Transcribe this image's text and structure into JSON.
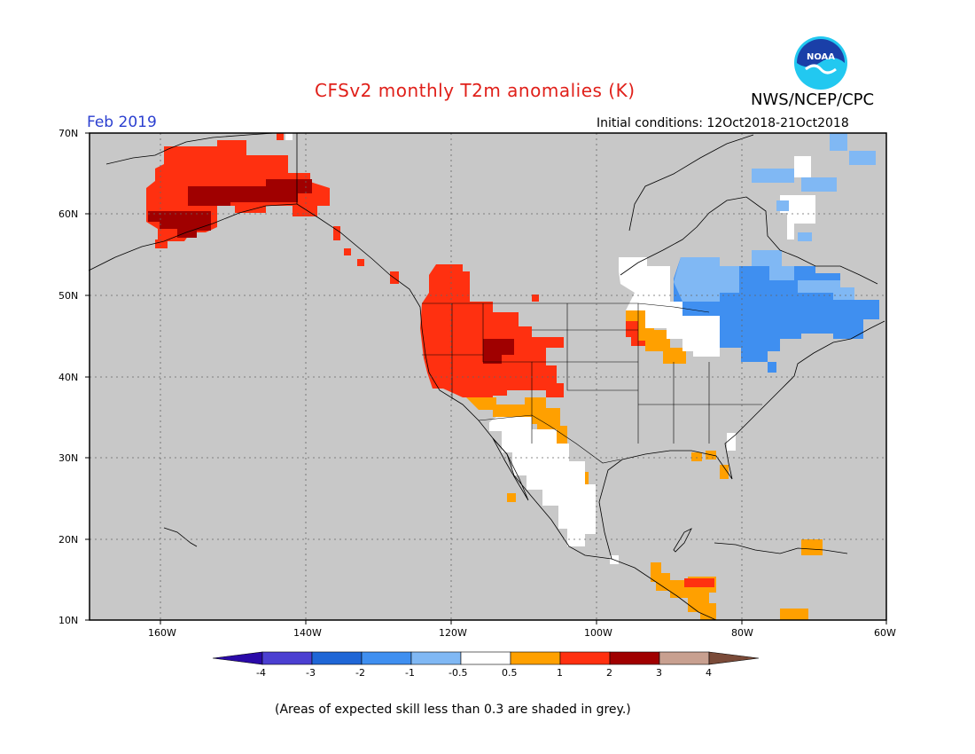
{
  "title": "CFSv2 monthly T2m anomalies (K)",
  "agency": "NWS/NCEP/CPC",
  "logo_text": "NOAA",
  "month": "Feb 2019",
  "initial_conditions": "Initial conditions: 12Oct2018-21Oct2018",
  "footnote": "(Areas of expected skill less than 0.3 are shaded in grey.)",
  "lat_labels": [
    "70N",
    "60N",
    "50N",
    "40N",
    "30N",
    "20N",
    "10N"
  ],
  "lon_labels": [
    "160W",
    "140W",
    "120W",
    "100W",
    "80W",
    "60W"
  ],
  "colorbar": {
    "labels": [
      "-4",
      "-3",
      "-2",
      "-1",
      "-0.5",
      "0.5",
      "1",
      "2",
      "3",
      "4"
    ],
    "colors": [
      "#2a0aa8",
      "#4b3fd1",
      "#1f66d6",
      "#3f8ff0",
      "#80b8f4",
      "#ffffff",
      "#ffa000",
      "#ff3010",
      "#a00000",
      "#c8a090",
      "#7a4a38"
    ]
  },
  "colors": {
    "land_grey": "#c8c8c8",
    "border": "#000000",
    "title": "#e0201a",
    "month": "#2b3fd0"
  }
}
